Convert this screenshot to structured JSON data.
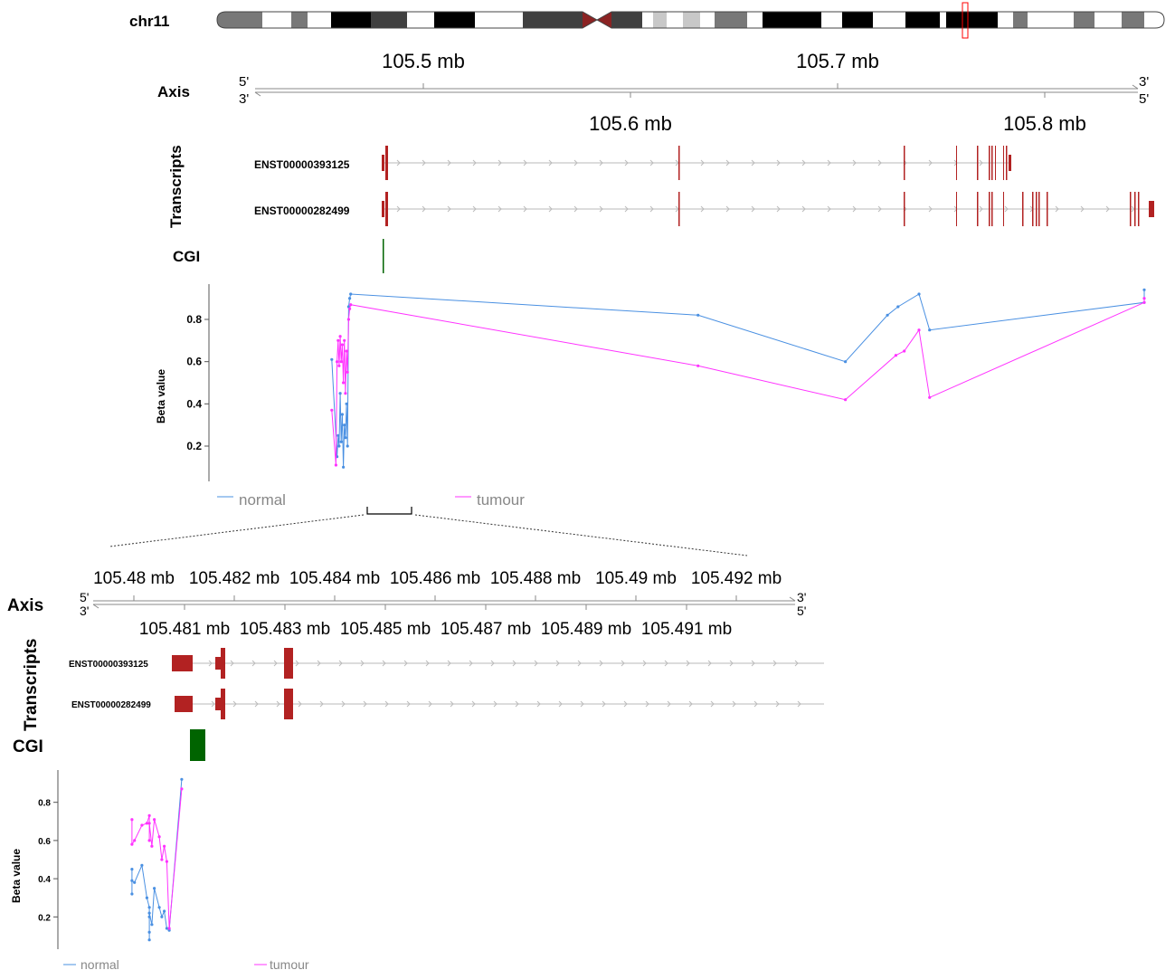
{
  "ideogram": {
    "chromosome": "chr11",
    "band_colors": [
      "#787878",
      "#ffffff",
      "#787878",
      "#ffffff",
      "#000000",
      "#404040",
      "#ffffff",
      "#000000",
      "#ffffff",
      "#404040",
      "#8b2323",
      "#404040",
      "#ffffff",
      "#c8c8c8",
      "#ffffff",
      "#c8c8c8",
      "#ffffff",
      "#787878",
      "#ffffff",
      "#000000",
      "#ffffff",
      "#000000",
      "#ffffff",
      "#000000",
      "#ffffff",
      "#000000",
      "#ffffff",
      "#787878",
      "#ffffff",
      "#787878",
      "#ffffff",
      "#787878",
      "#ffffff"
    ],
    "highlight_color": "#ff0000"
  },
  "top": {
    "axis_label": "Axis",
    "axis_ticks_above": [
      "105.5 mb",
      "105.7 mb"
    ],
    "axis_ticks_below": [
      "105.6 mb",
      "105.8 mb"
    ],
    "strand_left_top": "5'",
    "strand_left_bottom": "3'",
    "strand_right_top": "3'",
    "strand_right_bottom": "5'",
    "transcripts_label": "Transcripts",
    "transcripts": [
      "ENST00000393125",
      "ENST00000282499"
    ],
    "cgi_label": "CGI",
    "legend": [
      "normal",
      "tumour"
    ]
  },
  "bottom": {
    "axis_label": "Axis",
    "axis_ticks_above": [
      "105.48 mb",
      "105.482 mb",
      "105.484 mb",
      "105.486 mb",
      "105.488 mb",
      "105.49 mb",
      "105.492 mb"
    ],
    "axis_ticks_below": [
      "105.481 mb",
      "105.483 mb",
      "105.485 mb",
      "105.487 mb",
      "105.489 mb",
      "105.491 mb"
    ],
    "strand_left_top": "5'",
    "strand_left_bottom": "3'",
    "strand_right_top": "3'",
    "strand_right_bottom": "5'",
    "transcripts_label": "Transcripts",
    "transcripts": [
      "ENST00000393125",
      "ENST00000282499"
    ],
    "cgi_label": "CGI",
    "legend": [
      "normal",
      "tumour"
    ]
  },
  "colors": {
    "normal": "#4a90e2",
    "tumour": "#ff33ff",
    "exon": "#b22222",
    "cgi": "#006400",
    "intron": "#c8c8c8"
  },
  "chart_data": [
    {
      "type": "line",
      "ylabel": "Beta value",
      "yticks": [
        0.2,
        0.4,
        0.6,
        0.8
      ],
      "ylim": [
        0.05,
        0.95
      ],
      "xlim": [
        105.44,
        105.865
      ],
      "series": [
        {
          "name": "normal",
          "x": [
            105.476,
            105.4785,
            105.479,
            105.4795,
            105.48,
            105.4805,
            105.481,
            105.4815,
            105.482,
            105.4825,
            105.483,
            105.4835,
            105.484,
            105.4845,
            105.485,
            105.65,
            105.72,
            105.74,
            105.745,
            105.755,
            105.76,
            105.862,
            105.862
          ],
          "y": [
            0.61,
            0.15,
            0.25,
            0.2,
            0.45,
            0.22,
            0.35,
            0.1,
            0.3,
            0.24,
            0.4,
            0.2,
            0.86,
            0.9,
            0.92,
            0.82,
            0.6,
            0.82,
            0.86,
            0.92,
            0.75,
            0.88,
            0.94
          ]
        },
        {
          "name": "tumour",
          "x": [
            105.476,
            105.478,
            105.4785,
            105.479,
            105.4795,
            105.48,
            105.4805,
            105.481,
            105.4815,
            105.482,
            105.4825,
            105.483,
            105.4835,
            105.484,
            105.4845,
            105.485,
            105.65,
            105.72,
            105.744,
            105.748,
            105.755,
            105.76,
            105.862,
            105.862
          ],
          "y": [
            0.37,
            0.11,
            0.6,
            0.7,
            0.58,
            0.72,
            0.6,
            0.68,
            0.5,
            0.7,
            0.45,
            0.65,
            0.55,
            0.8,
            0.85,
            0.87,
            0.58,
            0.42,
            0.63,
            0.65,
            0.75,
            0.43,
            0.88,
            0.9
          ]
        }
      ]
    },
    {
      "type": "line",
      "ylabel": "Beta value",
      "yticks": [
        0.2,
        0.4,
        0.6,
        0.8
      ],
      "ylim": [
        0.05,
        0.95
      ],
      "xlim": [
        105.4785,
        105.4935
      ],
      "series": [
        {
          "name": "normal",
          "x": [
            105.4809,
            105.4809,
            105.4809,
            105.481,
            105.4813,
            105.4815,
            105.4816,
            105.4816,
            105.4816,
            105.4816,
            105.4816,
            105.4817,
            105.4818,
            105.482,
            105.4821,
            105.4822,
            105.4823,
            105.4824,
            105.4829
          ],
          "y": [
            0.45,
            0.32,
            0.39,
            0.38,
            0.47,
            0.3,
            0.25,
            0.2,
            0.08,
            0.12,
            0.22,
            0.16,
            0.35,
            0.25,
            0.2,
            0.23,
            0.14,
            0.13,
            0.92
          ]
        },
        {
          "name": "tumour",
          "x": [
            105.4809,
            105.4809,
            105.481,
            105.4813,
            105.4815,
            105.4816,
            105.4816,
            105.4816,
            105.4817,
            105.4818,
            105.482,
            105.4821,
            105.4822,
            105.4823,
            105.4824,
            105.4829
          ],
          "y": [
            0.71,
            0.58,
            0.6,
            0.68,
            0.69,
            0.73,
            0.6,
            0.69,
            0.57,
            0.71,
            0.62,
            0.5,
            0.57,
            0.49,
            0.14,
            0.87
          ]
        }
      ]
    }
  ]
}
